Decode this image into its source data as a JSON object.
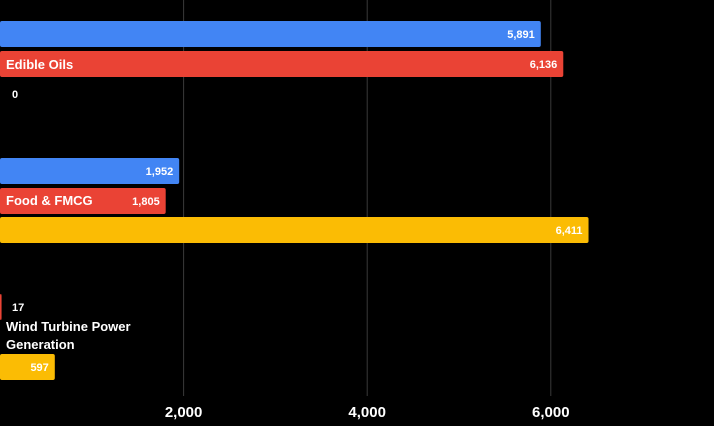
{
  "chart_data": {
    "type": "bar",
    "orientation": "horizontal",
    "colors": [
      "#4285f4",
      "#ea4335",
      "#fbbc04"
    ],
    "xlim": [
      0,
      7700
    ],
    "x_ticks": [
      "2,000",
      "4,000",
      "6,000"
    ],
    "grid": true,
    "categories": [
      {
        "name": "Edible Oils",
        "bars": [
          {
            "value": 5891,
            "label": "5,891",
            "color": "#4285f4"
          },
          {
            "value": 6136,
            "label": "6,136",
            "color": "#ea4335"
          },
          {
            "value": 0,
            "label": "0",
            "color": "#fbbc04"
          }
        ]
      },
      {
        "name": "Food & FMCG",
        "bars": [
          {
            "value": 1952,
            "label": "1,952",
            "color": "#4285f4"
          },
          {
            "value": 1805,
            "label": "1,805",
            "color": "#ea4335"
          },
          {
            "value": 6411,
            "label": "6,411",
            "color": "#fbbc04"
          }
        ]
      },
      {
        "name": "Wind Turbine Power Generation",
        "bars": [
          {
            "value": 17,
            "label": "17",
            "color": "#ea4335"
          },
          {
            "value": 597,
            "label": "597",
            "color": "#fbbc04"
          }
        ]
      }
    ]
  }
}
